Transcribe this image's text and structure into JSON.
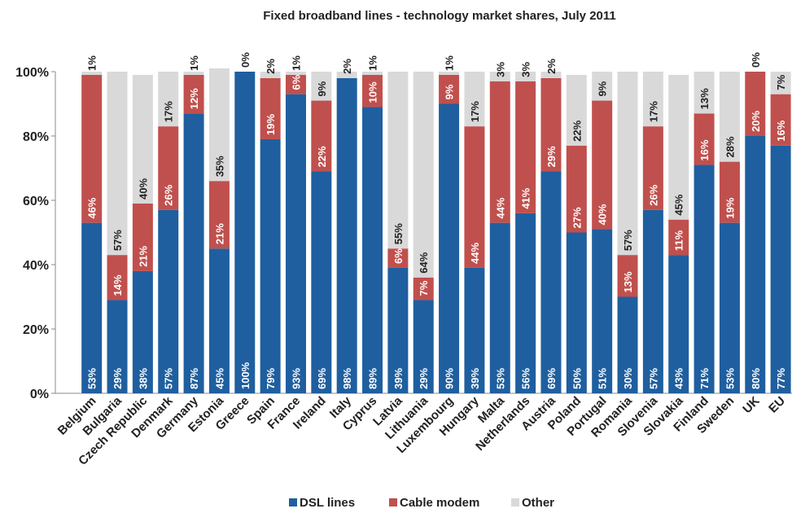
{
  "chart_data": {
    "type": "stacked_bar",
    "title": "Fixed broadband lines - technology market shares, July 2011",
    "categories": [
      "Belgium",
      "Bulgaria",
      "Czech Republic",
      "Denmark",
      "Germany",
      "Estonia",
      "Greece",
      "Spain",
      "France",
      "Ireland",
      "Italy",
      "Cyprus",
      "Latvia",
      "Lithuania",
      "Luxembourg",
      "Hungary",
      "Malta",
      "Netherlands",
      "Austria",
      "Poland",
      "Portugal",
      "Romania",
      "Slovenia",
      "Slovakia",
      "Finland",
      "Sweden",
      "UK",
      "EU"
    ],
    "series": [
      {
        "name": "DSL lines",
        "color": "#1f5f9f",
        "values": [
          53,
          29,
          38,
          57,
          87,
          45,
          100,
          79,
          93,
          69,
          98,
          89,
          39,
          29,
          90,
          39,
          53,
          56,
          69,
          50,
          51,
          30,
          57,
          43,
          71,
          53,
          80,
          77
        ],
        "value_labels": [
          "53%",
          "29%",
          "38%",
          "57%",
          "87%",
          "45%",
          "100%",
          "79%",
          "93%",
          "69%",
          "98%",
          "89%",
          "39%",
          "29%",
          "90%",
          "39%",
          "53%",
          "56%",
          "69%",
          "50%",
          "51%",
          "30%",
          "57%",
          "43%",
          "71%",
          "53%",
          "80%",
          "77%"
        ]
      },
      {
        "name": "Cable modem",
        "color": "#c0504d",
        "values": [
          46,
          14,
          21,
          26,
          12,
          21,
          0,
          19,
          6,
          22,
          0,
          10,
          6,
          7,
          9,
          44,
          44,
          41,
          29,
          27,
          40,
          13,
          26,
          11,
          16,
          19,
          20,
          16
        ],
        "value_labels": [
          "46%",
          "14%",
          "21%",
          "26%",
          "12%",
          "21%",
          null,
          "19%",
          "6%",
          "22%",
          null,
          "10%",
          "6%",
          "7%",
          "9%",
          "44%",
          "44%",
          "41%",
          "29%",
          "27%",
          "40%",
          "13%",
          "26%",
          "11%",
          "16%",
          "19%",
          "20%",
          "16%"
        ]
      },
      {
        "name": "Other",
        "color": "#d9d9d9",
        "values": [
          1,
          57,
          40,
          17,
          1,
          35,
          0,
          2,
          1,
          9,
          2,
          1,
          55,
          64,
          1,
          17,
          3,
          3,
          2,
          22,
          9,
          57,
          17,
          45,
          13,
          28,
          0,
          7
        ],
        "value_labels": [
          "1%",
          "57%",
          "40%",
          "17%",
          "1%",
          "35%",
          "0%",
          "2%",
          "1%",
          "9%",
          "2%",
          "1%",
          "55%",
          "64%",
          "1%",
          "17%",
          "3%",
          "3%",
          "2%",
          "22%",
          "9%",
          "57%",
          "17%",
          "45%",
          "13%",
          "28%",
          "0%",
          "7%"
        ]
      }
    ],
    "ylim": [
      0,
      100
    ],
    "yticks": [
      {
        "value": 0,
        "label": "0%"
      },
      {
        "value": 20,
        "label": "20%"
      },
      {
        "value": 40,
        "label": "40%"
      },
      {
        "value": 60,
        "label": "60%"
      },
      {
        "value": 80,
        "label": "80%"
      },
      {
        "value": 100,
        "label": "100%"
      }
    ]
  }
}
